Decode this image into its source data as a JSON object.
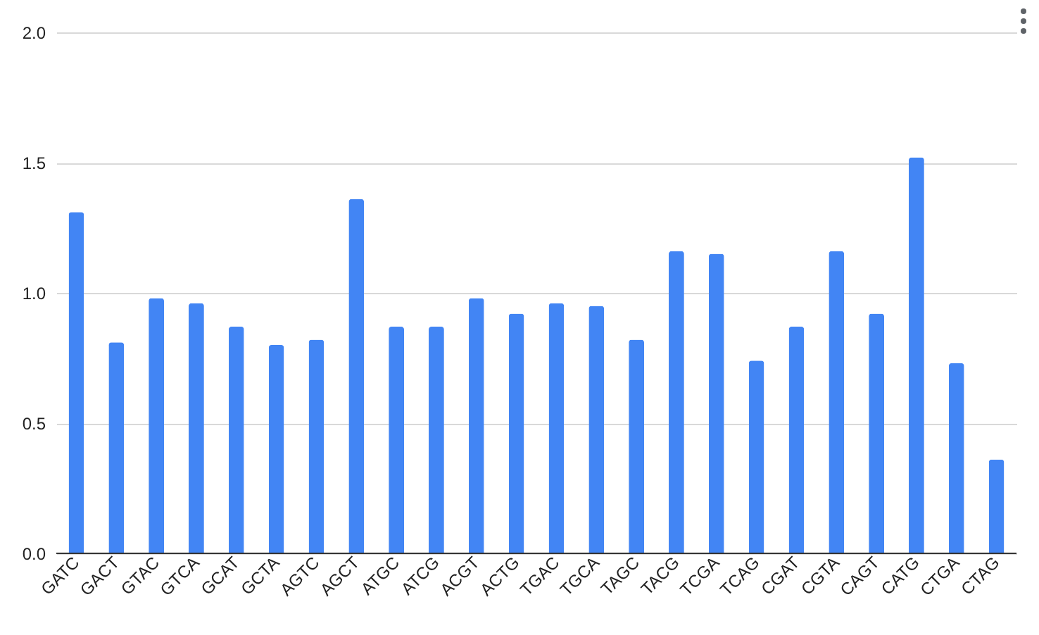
{
  "chart_data": {
    "type": "bar",
    "categories": [
      "GATC",
      "GACT",
      "GTAC",
      "GTCA",
      "GCAT",
      "GCTA",
      "AGTC",
      "AGCT",
      "ATGC",
      "ATCG",
      "ACGT",
      "ACTG",
      "TGAC",
      "TGCA",
      "TAGC",
      "TACG",
      "TCGA",
      "TCAG",
      "CGAT",
      "CGTA",
      "CAGT",
      "CATG",
      "CTGA",
      "CTAG"
    ],
    "values": [
      1.31,
      0.81,
      0.98,
      0.96,
      0.87,
      0.8,
      0.82,
      1.36,
      0.87,
      0.87,
      0.98,
      0.92,
      0.96,
      0.95,
      0.82,
      1.16,
      1.15,
      0.74,
      0.87,
      1.16,
      0.92,
      1.52,
      0.73,
      0.36
    ],
    "color": "#4285f4",
    "ylim": [
      0,
      2
    ],
    "yticks": [
      {
        "value": 0,
        "label": "0.0"
      },
      {
        "value": 0.5,
        "label": "0.5"
      },
      {
        "value": 1,
        "label": "1.0"
      },
      {
        "value": 1.5,
        "label": "1.5"
      },
      {
        "value": 2,
        "label": "2.0"
      }
    ],
    "grid": "y"
  }
}
